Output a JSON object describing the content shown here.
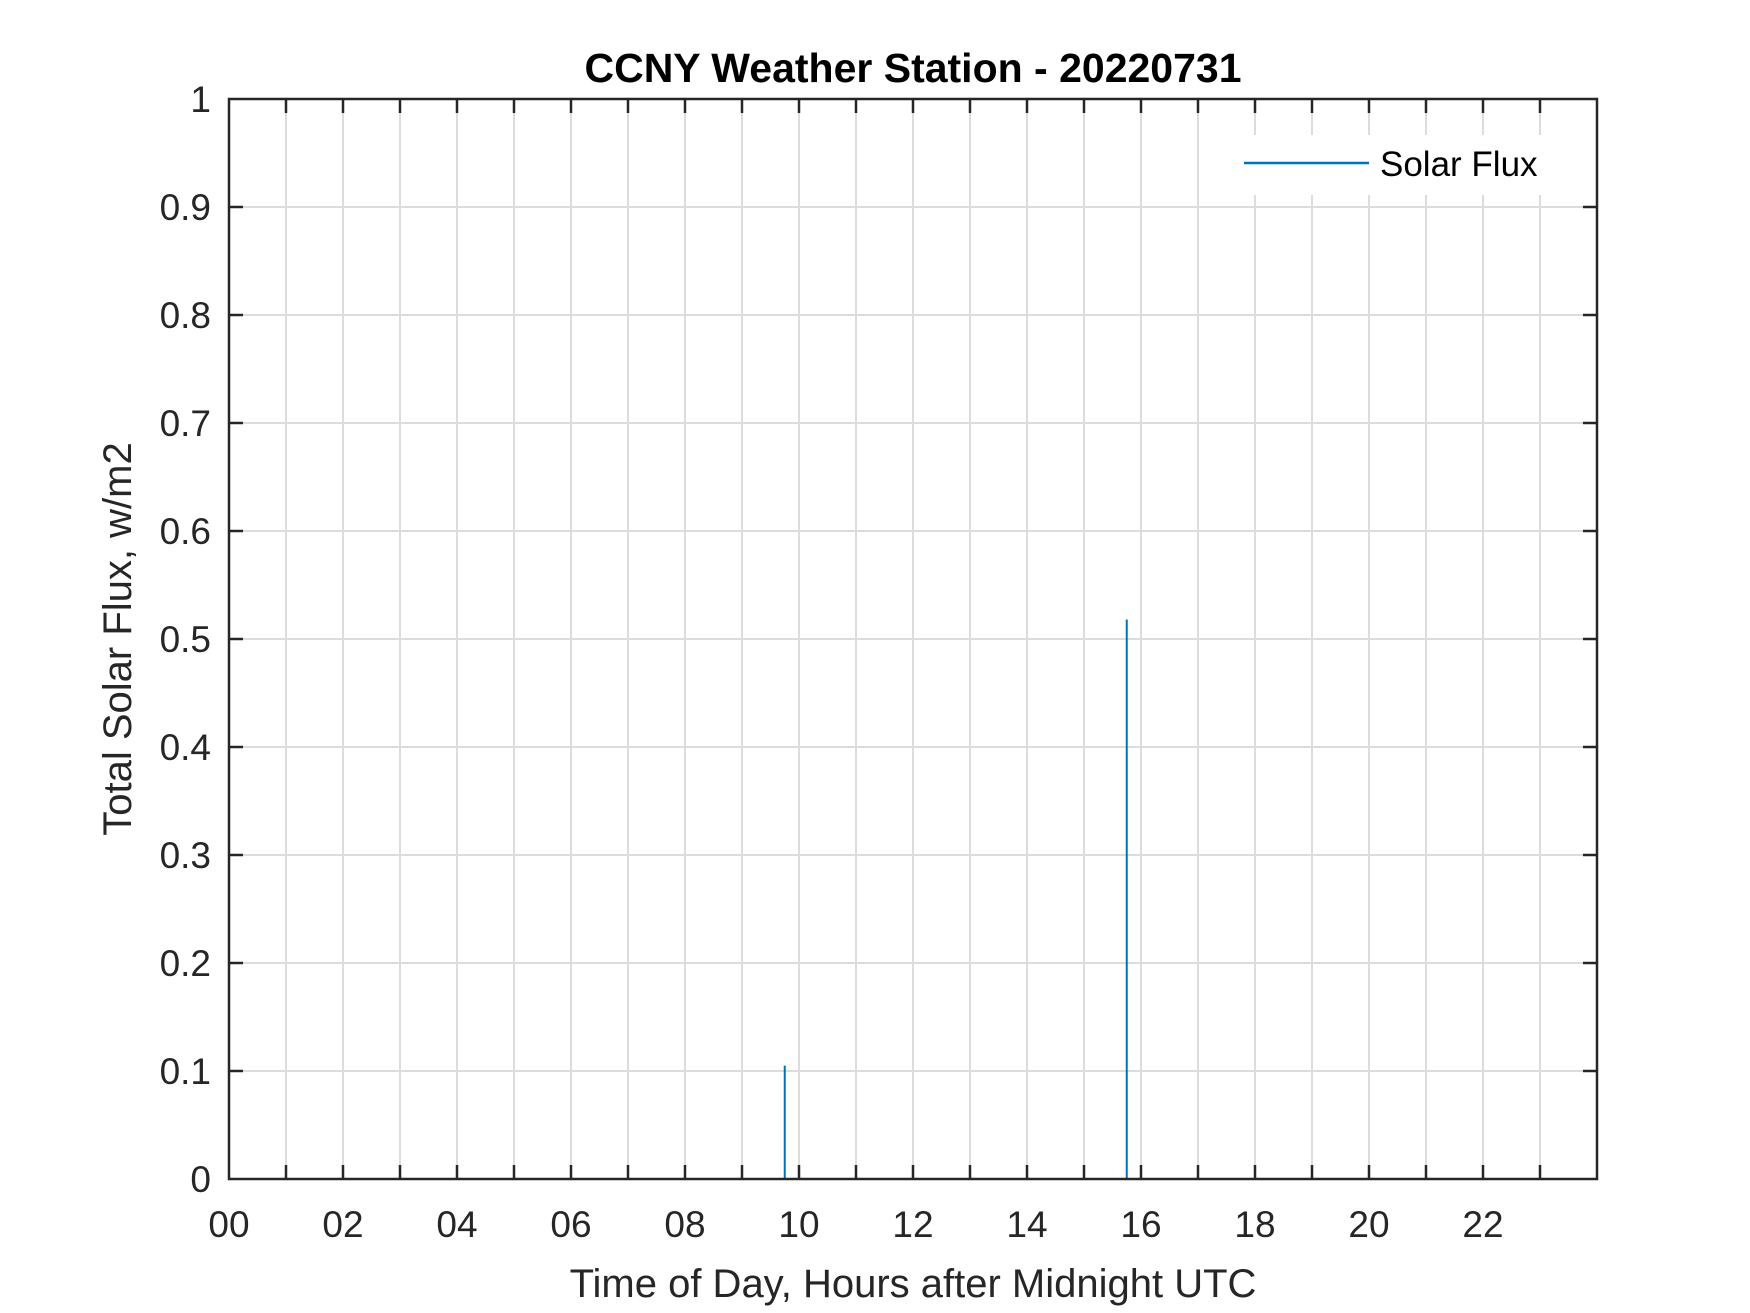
{
  "chart_data": {
    "type": "line",
    "title": "CCNY Weather Station - 20220731",
    "xlabel": "Time of Day, Hours after Midnight UTC",
    "ylabel": "Total Solar Flux, w/m2",
    "xlim": [
      0,
      24
    ],
    "ylim": [
      0,
      1
    ],
    "x_ticks": [
      0,
      2,
      4,
      6,
      8,
      10,
      12,
      14,
      16,
      18,
      20,
      22
    ],
    "x_tick_labels": [
      "00",
      "02",
      "04",
      "06",
      "08",
      "10",
      "12",
      "14",
      "16",
      "18",
      "20",
      "22"
    ],
    "x_minor_grid_step": 1,
    "y_ticks": [
      0,
      0.1,
      0.2,
      0.3,
      0.4,
      0.5,
      0.6,
      0.7,
      0.8,
      0.9,
      1
    ],
    "y_tick_labels": [
      "0",
      "0.1",
      "0.2",
      "0.3",
      "0.4",
      "0.5",
      "0.6",
      "0.7",
      "0.8",
      "0.9",
      "1"
    ],
    "grid": true,
    "legend_position": "top-right",
    "series": [
      {
        "name": "Solar Flux",
        "color": "#0072BD",
        "points": [
          {
            "x": 9.75,
            "y": 0.105
          },
          {
            "x": 15.75,
            "y": 0.518
          }
        ]
      }
    ]
  }
}
